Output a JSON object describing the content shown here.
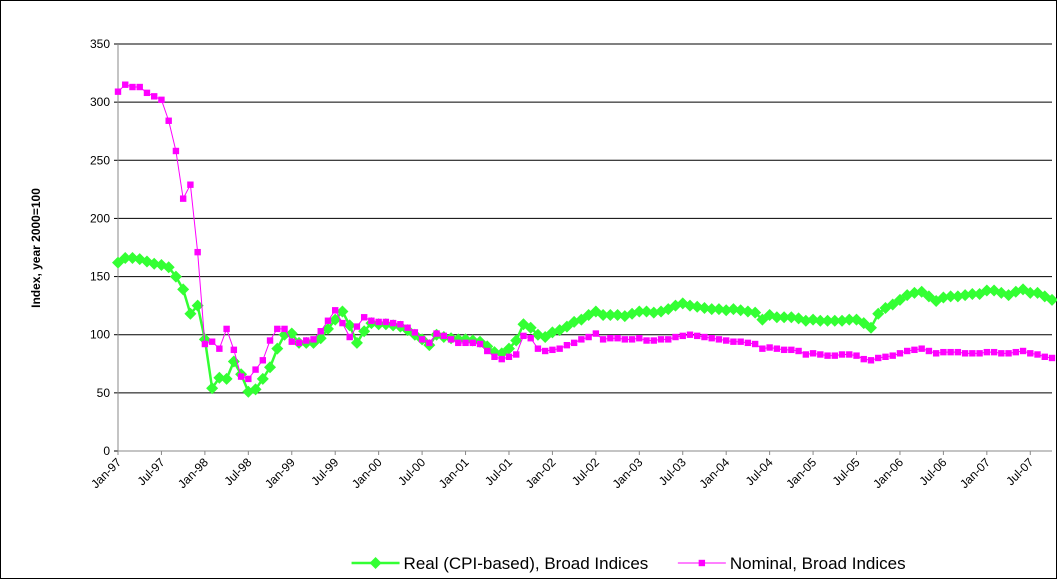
{
  "chart_data": {
    "type": "line",
    "y_label": "Index, year 2000=100",
    "categories": [
      "Jan-97",
      null,
      null,
      null,
      null,
      null,
      "Jul-97",
      null,
      null,
      null,
      null,
      null,
      "Jan-98",
      null,
      null,
      null,
      null,
      null,
      "Jul-98",
      null,
      null,
      null,
      null,
      null,
      "Jan-99",
      null,
      null,
      null,
      null,
      null,
      "Jul-99",
      null,
      null,
      null,
      null,
      null,
      "Jan-00",
      null,
      null,
      null,
      null,
      null,
      "Jul-00",
      null,
      null,
      null,
      null,
      null,
      "Jan-01",
      null,
      null,
      null,
      null,
      null,
      "Jul-01",
      null,
      null,
      null,
      null,
      null,
      "Jan-02",
      null,
      null,
      null,
      null,
      null,
      "Jul-02",
      null,
      null,
      null,
      null,
      null,
      "Jan-03",
      null,
      null,
      null,
      null,
      null,
      "Jul-03",
      null,
      null,
      null,
      null,
      null,
      "Jan-04",
      null,
      null,
      null,
      null,
      null,
      "Jul-04",
      null,
      null,
      null,
      null,
      null,
      "Jan-05",
      null,
      null,
      null,
      null,
      null,
      "Jul-05",
      null,
      null,
      null,
      null,
      null,
      "Jan-06",
      null,
      null,
      null,
      null,
      null,
      "Jul-06",
      null,
      null,
      null,
      null,
      null,
      "Jan-07",
      null,
      null,
      null,
      null,
      null,
      "Jul-07",
      null,
      null,
      null
    ],
    "series": [
      {
        "name": "Real (CPI-based), Broad Indices",
        "color": "#33ff33",
        "marker": "diamond",
        "values": [
          162,
          166,
          166,
          165,
          163,
          161,
          160,
          158,
          150,
          139,
          118,
          125,
          96,
          54,
          63,
          62,
          77,
          66,
          51,
          53,
          62,
          72,
          88,
          100,
          101,
          93,
          93,
          93,
          97,
          105,
          113,
          120,
          108,
          93,
          103,
          110,
          109,
          109,
          108,
          107,
          104,
          100,
          96,
          91,
          100,
          98,
          97,
          96,
          96,
          95,
          94,
          90,
          85,
          84,
          88,
          95,
          109,
          106,
          100,
          98,
          102,
          104,
          107,
          111,
          113,
          117,
          120,
          117,
          117,
          117,
          116,
          118,
          120,
          120,
          119,
          120,
          122,
          125,
          127,
          125,
          124,
          123,
          122,
          122,
          121,
          122,
          121,
          120,
          119,
          113,
          117,
          115,
          115,
          115,
          114,
          112,
          113,
          112,
          112,
          112,
          112,
          113,
          113,
          110,
          106,
          118,
          123,
          126,
          130,
          134,
          136,
          137,
          133,
          129,
          132,
          133,
          133,
          134,
          135,
          135,
          138,
          138,
          136,
          134,
          137,
          139,
          136,
          136,
          133,
          130
        ]
      },
      {
        "name": "Nominal, Broad Indices",
        "color": "#ff00ff",
        "marker": "square",
        "values": [
          309,
          315,
          313,
          313,
          308,
          305,
          302,
          284,
          258,
          217,
          229,
          171,
          92,
          94,
          88,
          105,
          87,
          64,
          62,
          70,
          78,
          95,
          105,
          105,
          94,
          93,
          95,
          96,
          103,
          112,
          121,
          110,
          98,
          107,
          115,
          112,
          111,
          111,
          110,
          109,
          106,
          102,
          96,
          93,
          101,
          99,
          96,
          93,
          93,
          93,
          92,
          86,
          81,
          79,
          81,
          83,
          99,
          97,
          88,
          86,
          87,
          88,
          91,
          93,
          96,
          98,
          101,
          96,
          97,
          97,
          96,
          96,
          97,
          95,
          95,
          96,
          96,
          98,
          99,
          100,
          99,
          98,
          97,
          96,
          95,
          94,
          94,
          93,
          92,
          88,
          89,
          88,
          87,
          87,
          86,
          83,
          84,
          83,
          82,
          82,
          83,
          83,
          82,
          79,
          78,
          80,
          81,
          82,
          84,
          86,
          87,
          88,
          86,
          84,
          85,
          85,
          85,
          84,
          84,
          84,
          85,
          85,
          84,
          84,
          85,
          86,
          84,
          83,
          81,
          80
        ]
      }
    ],
    "ylim": [
      0,
      350
    ],
    "yticks": [
      0,
      50,
      100,
      150,
      200,
      250,
      300,
      350
    ],
    "grid": true,
    "legend": "bottom"
  }
}
